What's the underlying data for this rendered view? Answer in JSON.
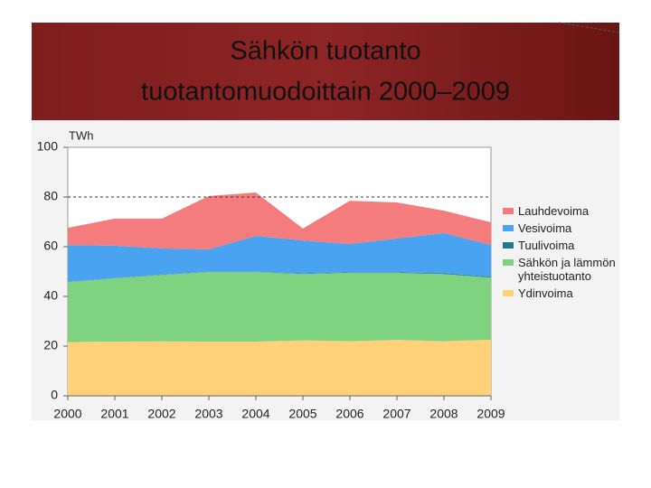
{
  "header": {
    "lines": [
      "Sähkön tuotanto",
      "tuotantomuodoittain 2000–2009"
    ]
  },
  "chart_data": {
    "type": "stacked_area",
    "ylabel": "TWh",
    "categories": [
      "2000",
      "2001",
      "2002",
      "2003",
      "2004",
      "2005",
      "2006",
      "2007",
      "2008",
      "2009"
    ],
    "series": [
      {
        "name": "Lauhdevoima",
        "color": "#f47c7c",
        "values": [
          6.9,
          10.9,
          12.0,
          21.5,
          17.4,
          4.8,
          17.4,
          14.5,
          9.0,
          9.1
        ]
      },
      {
        "name": "Vesivoima",
        "color": "#4aa3f0",
        "values": [
          14.8,
          13.0,
          10.5,
          9.0,
          14.5,
          13.3,
          11.4,
          13.6,
          16.2,
          12.8
        ]
      },
      {
        "name": "Tuulivoima",
        "color": "#1f7a8c",
        "values": [
          0.1,
          0.1,
          0.1,
          0.1,
          0.1,
          0.2,
          0.2,
          0.2,
          0.3,
          0.3
        ]
      },
      {
        "name": "Sähkön ja lämmön yhteistuotanto",
        "color": "#7fd27f",
        "values": [
          24.2,
          25.5,
          26.8,
          28.0,
          28.0,
          26.7,
          27.5,
          27.0,
          27.0,
          25.0
        ]
      },
      {
        "name": "Ydinvoima",
        "color": "#ffd27a",
        "values": [
          21.6,
          21.8,
          21.9,
          21.8,
          21.8,
          22.3,
          22.0,
          22.5,
          22.0,
          22.6
        ]
      }
    ],
    "ylim": [
      0,
      100
    ],
    "yticks": [
      0,
      20,
      40,
      60,
      80,
      100
    ],
    "reference_line": 80,
    "grid": false
  }
}
